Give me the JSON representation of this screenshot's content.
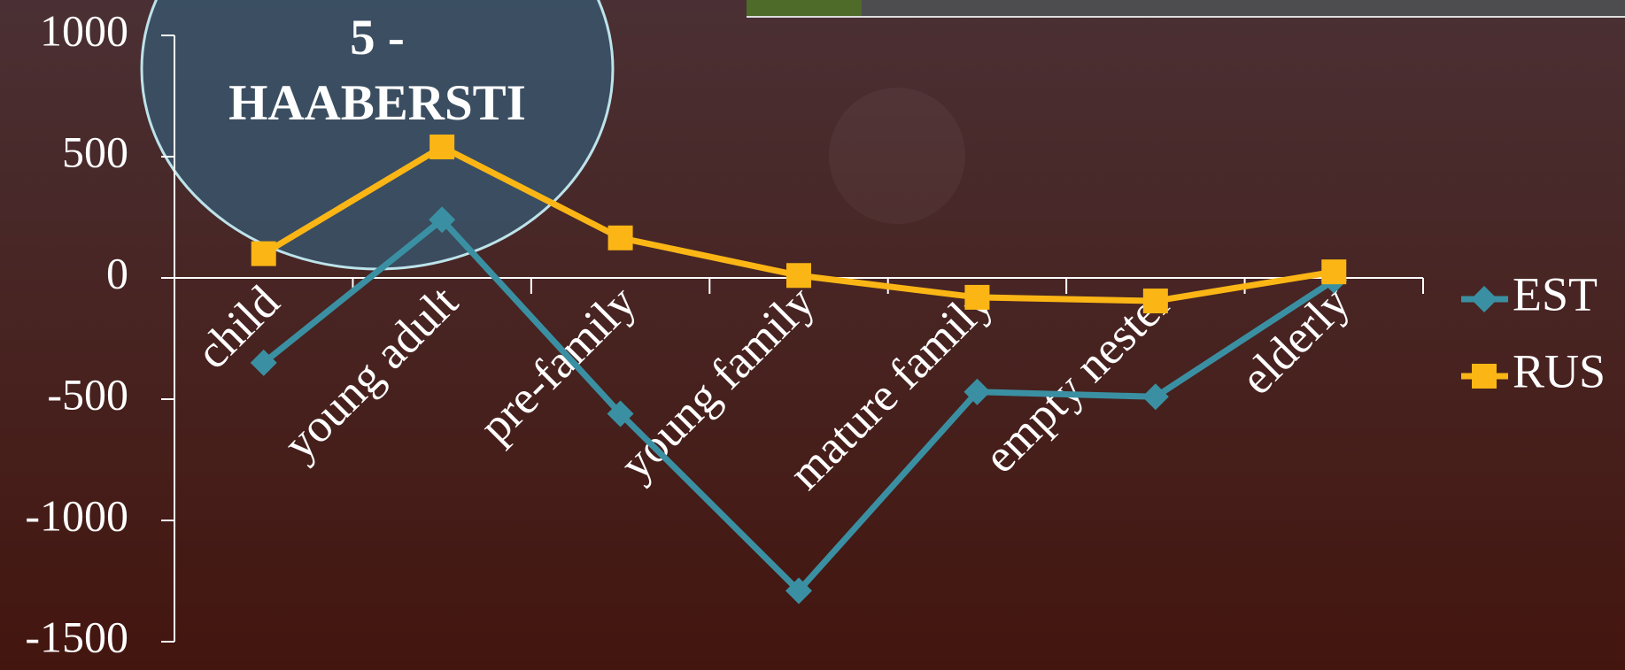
{
  "chart_data": {
    "type": "line",
    "title": "5 - HAABERSTI",
    "categories": [
      "child",
      "young adult",
      "pre-family",
      "young family",
      "mature family",
      "empty nester",
      "elderly"
    ],
    "series": [
      {
        "name": "EST",
        "color": "#3a90a2",
        "marker": "diamond",
        "values": [
          -350,
          240,
          -560,
          -1290,
          -470,
          -490,
          -10
        ]
      },
      {
        "name": "RUS",
        "color": "#fbb615",
        "marker": "square",
        "values": [
          100,
          540,
          165,
          10,
          -80,
          -95,
          25
        ]
      }
    ],
    "ylim": [
      -1500,
      1000
    ],
    "yticks": [
      -1500,
      -1000,
      -500,
      0,
      500,
      1000
    ],
    "grid": false,
    "legend": "right"
  }
}
